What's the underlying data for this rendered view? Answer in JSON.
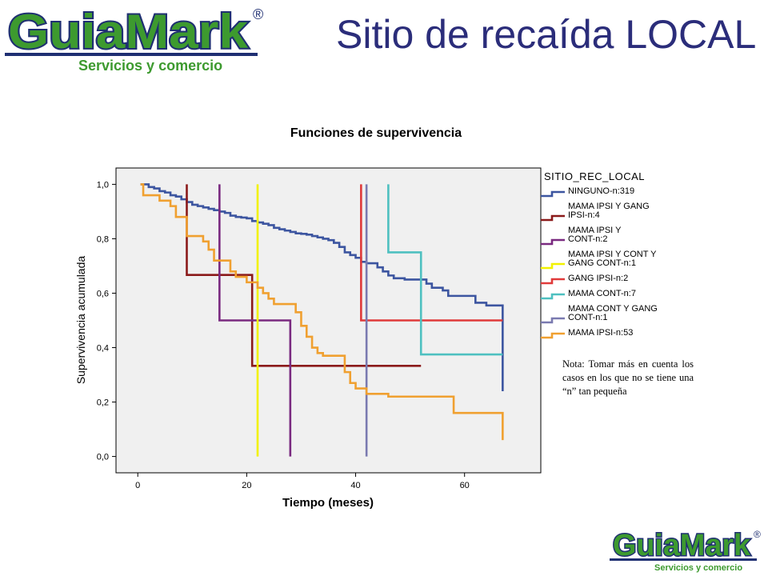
{
  "slide": {
    "title": "Sitio de recaída LOCAL",
    "logo_text": "GuiaMark",
    "logo_tagline": "Servicios y comercio",
    "logo_reg": "®",
    "note": "Nota: Tomar más en cuenta los casos en los que no se tiene una “n” tan pequeña"
  },
  "colors": {
    "logo_green": "#3d9a2f",
    "logo_blue": "#1f2f72",
    "title": "#2b2d7a",
    "plot_bg": "#f0f0f0"
  },
  "chart_data": {
    "type": "line",
    "title": "Funciones de supervivencia",
    "xlabel": "Tiempo (meses)",
    "ylabel": "Supervivencia acumulada",
    "xlim": [
      -4,
      74
    ],
    "ylim": [
      -0.06,
      1.06
    ],
    "xticks": [
      0,
      20,
      40,
      60
    ],
    "yticks": [
      0.0,
      0.2,
      0.4,
      0.6,
      0.8,
      1.0
    ],
    "ytick_labels": [
      "0,0",
      "0,2",
      "0,4",
      "0,6",
      "0,8",
      "1,0"
    ],
    "grid": false,
    "legend_title": "SITIO_REC_LOCAL",
    "legend_position": "right",
    "step": true,
    "series": [
      {
        "name": "NINGUNO-n:319",
        "color": "#3c55a0",
        "x": [
          0.5,
          2,
          3,
          4,
          5,
          6,
          7,
          8,
          9,
          10,
          11,
          12,
          13,
          14,
          15,
          16,
          17,
          18,
          19,
          20,
          21,
          22,
          23,
          24,
          25,
          26,
          27,
          28,
          29,
          30,
          31,
          32,
          33,
          34,
          35,
          36,
          37,
          38,
          39,
          40,
          41,
          42,
          43,
          44,
          45,
          46,
          47,
          48,
          49,
          50,
          51,
          52,
          53,
          54,
          55,
          56,
          57,
          58,
          59,
          60,
          61,
          62,
          63,
          64,
          65,
          66,
          67,
          67
        ],
        "y": [
          1.0,
          0.99,
          0.985,
          0.975,
          0.97,
          0.96,
          0.955,
          0.945,
          0.935,
          0.925,
          0.92,
          0.915,
          0.91,
          0.905,
          0.9,
          0.895,
          0.885,
          0.88,
          0.878,
          0.875,
          0.865,
          0.86,
          0.855,
          0.85,
          0.84,
          0.835,
          0.83,
          0.825,
          0.82,
          0.818,
          0.815,
          0.81,
          0.805,
          0.8,
          0.795,
          0.785,
          0.77,
          0.75,
          0.74,
          0.73,
          0.715,
          0.71,
          0.71,
          0.695,
          0.68,
          0.665,
          0.655,
          0.655,
          0.65,
          0.65,
          0.65,
          0.65,
          0.635,
          0.62,
          0.62,
          0.61,
          0.59,
          0.59,
          0.59,
          0.59,
          0.59,
          0.565,
          0.565,
          0.555,
          0.555,
          0.555,
          0.24,
          0.24
        ]
      },
      {
        "name": "MAMA IPSI Y GANG IPSI-n:4",
        "color": "#8b1a1a",
        "x": [
          9,
          9,
          21,
          21,
          52
        ],
        "y": [
          1.0,
          0.667,
          0.667,
          0.333,
          0.333
        ]
      },
      {
        "name": "MAMA IPSI Y CONT-n:2",
        "color": "#7a2a80",
        "x": [
          15,
          15,
          28,
          28
        ],
        "y": [
          1.0,
          0.5,
          0.5,
          0.0
        ]
      },
      {
        "name": "MAMA IPSI Y CONT Y GANG CONT-n:1",
        "color": "#f2f200",
        "x": [
          22,
          22
        ],
        "y": [
          1.0,
          0.0
        ]
      },
      {
        "name": "GANG IPSI-n:2",
        "color": "#e03a3a",
        "x": [
          41,
          41,
          67
        ],
        "y": [
          1.0,
          0.5,
          0.5
        ]
      },
      {
        "name": "MAMA CONT-n:7",
        "color": "#4ec0c0",
        "x": [
          46,
          46,
          52,
          52,
          67
        ],
        "y": [
          1.0,
          0.75,
          0.75,
          0.375,
          0.375
        ]
      },
      {
        "name": "MAMA CONT Y GANG CONT-n:1",
        "color": "#7a7ab0",
        "x": [
          42,
          42
        ],
        "y": [
          1.0,
          0.0
        ]
      },
      {
        "name": "MAMA IPSI-n:53",
        "color": "#f0a030",
        "x": [
          0.5,
          1,
          4,
          6,
          7,
          9,
          12,
          13,
          14,
          15,
          17,
          18,
          20,
          22,
          23,
          24,
          25,
          28,
          29,
          30,
          31,
          32,
          33,
          34,
          38,
          39,
          40,
          42,
          46,
          52,
          58,
          59,
          67,
          67
        ],
        "y": [
          1.0,
          0.96,
          0.94,
          0.92,
          0.88,
          0.81,
          0.79,
          0.76,
          0.72,
          0.72,
          0.68,
          0.66,
          0.64,
          0.62,
          0.6,
          0.58,
          0.56,
          0.56,
          0.53,
          0.48,
          0.44,
          0.4,
          0.38,
          0.37,
          0.31,
          0.27,
          0.25,
          0.23,
          0.22,
          0.22,
          0.16,
          0.16,
          0.16,
          0.06
        ]
      }
    ]
  }
}
